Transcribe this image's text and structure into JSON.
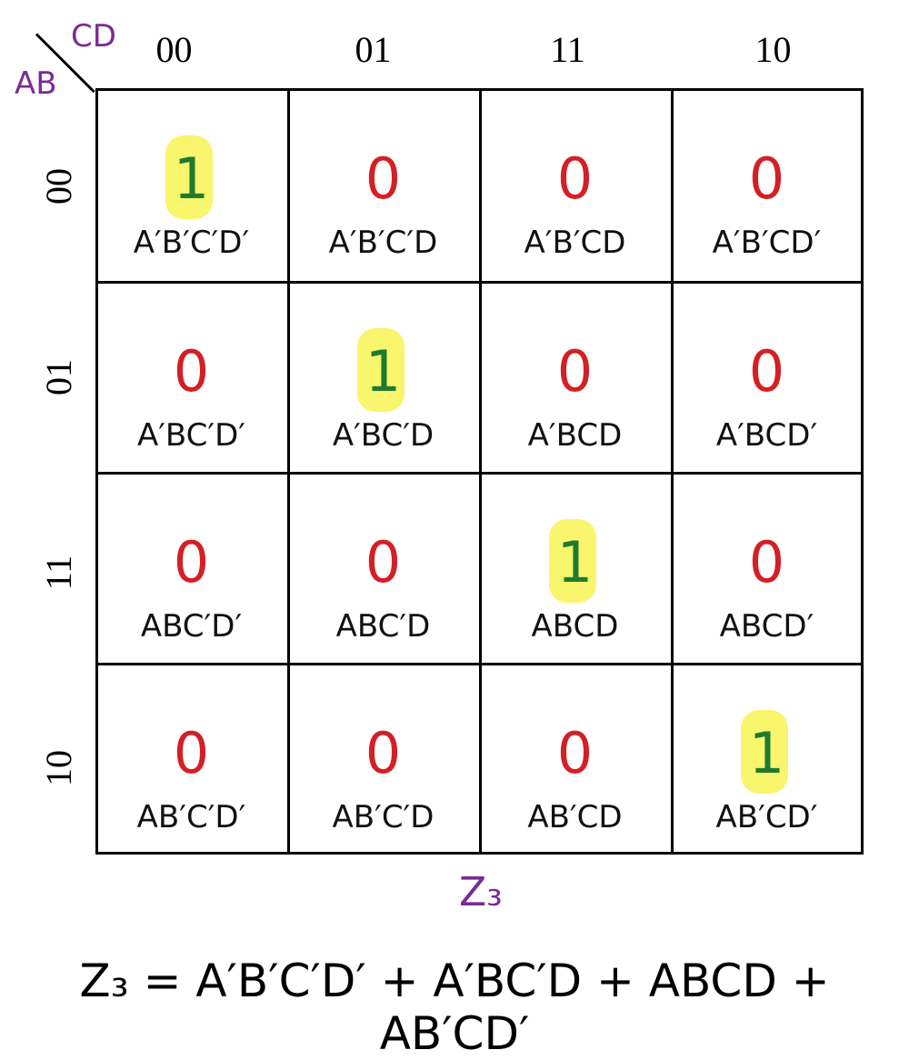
{
  "corner": {
    "col_var": "CD",
    "row_var": "AB"
  },
  "columns": [
    "00",
    "01",
    "11",
    "10"
  ],
  "rows": [
    "00",
    "01",
    "11",
    "10"
  ],
  "cells": [
    [
      {
        "value": "1",
        "term": "A′B′C′D′"
      },
      {
        "value": "0",
        "term": "A′B′C′D"
      },
      {
        "value": "0",
        "term": "A′B′CD"
      },
      {
        "value": "0",
        "term": "A′B′CD′"
      }
    ],
    [
      {
        "value": "0",
        "term": "A′BC′D′"
      },
      {
        "value": "1",
        "term": "A′BC′D"
      },
      {
        "value": "0",
        "term": "A′BCD"
      },
      {
        "value": "0",
        "term": "A′BCD′"
      }
    ],
    [
      {
        "value": "0",
        "term": "ABC′D′"
      },
      {
        "value": "0",
        "term": "ABC′D"
      },
      {
        "value": "1",
        "term": "ABCD"
      },
      {
        "value": "0",
        "term": "ABCD′"
      }
    ],
    [
      {
        "value": "0",
        "term": "AB′C′D′"
      },
      {
        "value": "0",
        "term": "AB′C′D"
      },
      {
        "value": "0",
        "term": "AB′CD"
      },
      {
        "value": "1",
        "term": "AB′CD′"
      }
    ]
  ],
  "map_label": "Z₃",
  "equation": "Z₃ = A′B′C′D′ + A′BC′D + ABCD + AB′CD′",
  "colors": {
    "one": "#1e7b2e",
    "zero": "#d41f24",
    "highlight": "#f9f56d",
    "label": "#7b2a96"
  }
}
